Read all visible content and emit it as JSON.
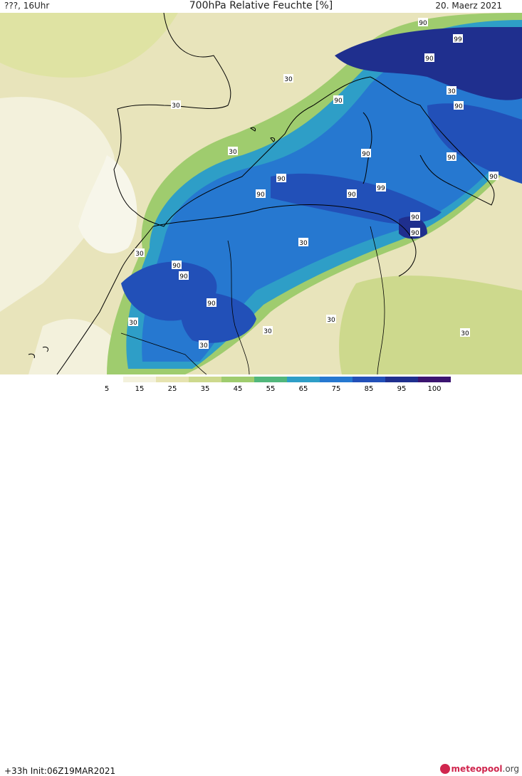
{
  "header": {
    "location": "???, 16Uhr",
    "title": "700hPa Relative Feuchte [%]",
    "date": "20. Maerz 2021"
  },
  "footer": {
    "init": "+33h  Init:06Z19MAR2021",
    "brand": "meteopool",
    "brand_suffix": ".org"
  },
  "legend": {
    "ticks": [
      "5",
      "15",
      "25",
      "35",
      "45",
      "55",
      "65",
      "75",
      "85",
      "95",
      "100"
    ],
    "colors": [
      "#ffffff",
      "#f3f1dc",
      "#e6e3b0",
      "#cdd98d",
      "#9fcc6e",
      "#52b77c",
      "#2e9ec7",
      "#2678d0",
      "#2250b8",
      "#1f2f8e",
      "#3b1470"
    ]
  },
  "contour_labels": [
    "90",
    "99",
    "90",
    "30",
    "90",
    "30",
    "30",
    "30",
    "90",
    "90",
    "90",
    "90",
    "90",
    "90",
    "90",
    "99",
    "90",
    "30",
    "90",
    "90",
    "90",
    "90",
    "30",
    "30",
    "30",
    "30",
    "30",
    "30"
  ]
}
